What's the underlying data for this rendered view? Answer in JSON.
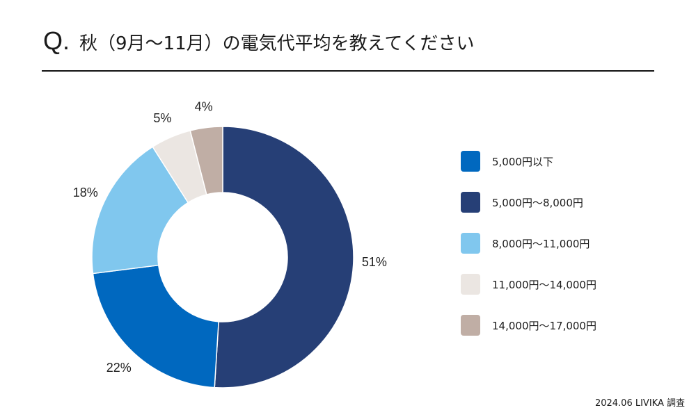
{
  "header": {
    "q_mark": "Q.",
    "question": "秋（9月〜11月）の電気代平均を教えてください"
  },
  "chart_data": {
    "type": "pie",
    "variant": "donut",
    "start_angle": "12 o'clock",
    "direction": "clockwise",
    "categories": [
      "5,000円〜8,000円",
      "5,000円以下",
      "8,000円〜11,000円",
      "11,000円〜14,000円",
      "14,000円〜17,000円"
    ],
    "values": [
      51,
      22,
      18,
      5,
      4
    ],
    "value_labels": [
      "51%",
      "22%",
      "18%",
      "5%",
      "4%"
    ],
    "colors": [
      "#263f76",
      "#0068bf",
      "#80c7ee",
      "#ebe6e2",
      "#c0aea5"
    ],
    "legend": [
      {
        "label": "5,000円以下",
        "color": "#0068bf"
      },
      {
        "label": "5,000円〜8,000円",
        "color": "#263f76"
      },
      {
        "label": "8,000円〜11,000円",
        "color": "#80c7ee"
      },
      {
        "label": "11,000円〜14,000円",
        "color": "#ebe6e2"
      },
      {
        "label": "14,000円〜17,000円",
        "color": "#c0aea5"
      }
    ],
    "legend_position": "right"
  },
  "footer": {
    "source": "2024.06 LIVIKA 調査"
  }
}
